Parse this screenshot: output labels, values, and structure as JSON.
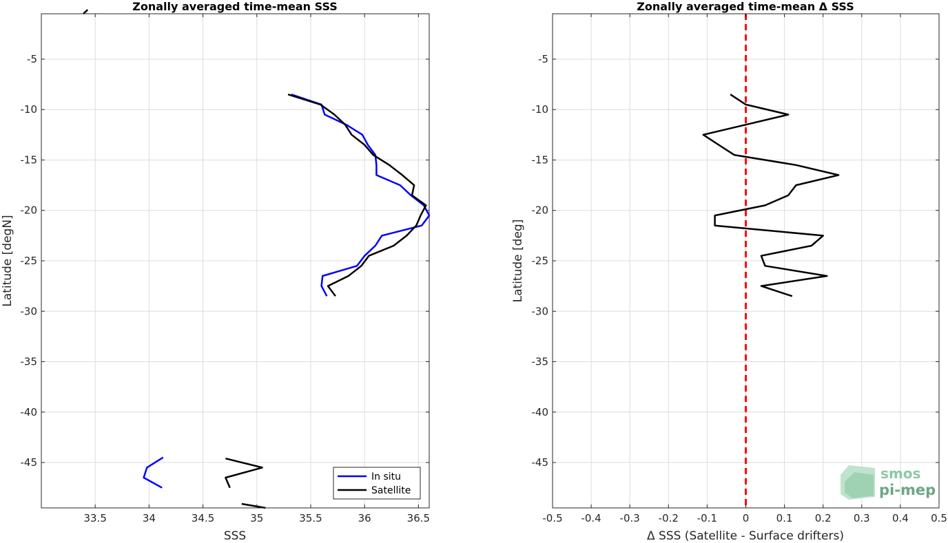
{
  "chart_data": [
    {
      "type": "line",
      "title": "Zonally averaged time-mean SSS",
      "xlabel": "SSS",
      "ylabel": "Latitude [degN]",
      "xlim": [
        33.0,
        36.6
      ],
      "ylim": [
        -49.5,
        -0.5
      ],
      "xticks": [
        33.5,
        34,
        34.5,
        35,
        35.5,
        36,
        36.5
      ],
      "xtick_labels": [
        "33.5",
        "34",
        "34.5",
        "35",
        "35.5",
        "36",
        "36.5"
      ],
      "yticks": [
        -5,
        -10,
        -15,
        -20,
        -25,
        -30,
        -35,
        -40,
        -45
      ],
      "ytick_labels": [
        "-5",
        "-10",
        "-15",
        "-20",
        "-25",
        "-30",
        "-35",
        "-40",
        "-45"
      ],
      "grid": true,
      "legend_position": "bottom-right",
      "series": [
        {
          "name": "In situ",
          "color": "#0000ff",
          "segments": [
            [
              [
                35.32,
                -8.5
              ],
              [
                35.6,
                -9.5
              ],
              [
                35.63,
                -10.5
              ],
              [
                35.83,
                -11.5
              ],
              [
                35.98,
                -12.5
              ],
              [
                36.03,
                -13.5
              ],
              [
                36.1,
                -14.5
              ],
              [
                36.11,
                -15.5
              ],
              [
                36.11,
                -16.5
              ],
              [
                36.33,
                -17.5
              ],
              [
                36.43,
                -18.5
              ],
              [
                36.55,
                -19.5
              ],
              [
                36.6,
                -20.5
              ],
              [
                36.53,
                -21.5
              ],
              [
                36.16,
                -22.5
              ],
              [
                36.1,
                -23.5
              ],
              [
                36.0,
                -24.5
              ],
              [
                35.93,
                -25.5
              ],
              [
                35.61,
                -26.5
              ],
              [
                35.6,
                -27.5
              ],
              [
                35.65,
                -28.5
              ]
            ],
            [
              [
                34.13,
                -44.5
              ],
              [
                33.98,
                -45.5
              ],
              [
                33.95,
                -46.5
              ],
              [
                34.12,
                -47.5
              ]
            ]
          ]
        },
        {
          "name": "Satellite",
          "color": "#000000",
          "segments": [
            [
              [
                33.43,
                -0.1
              ],
              [
                33.39,
                -0.5
              ]
            ],
            [
              [
                35.29,
                -8.5
              ],
              [
                35.59,
                -9.5
              ],
              [
                35.72,
                -10.5
              ],
              [
                35.82,
                -11.5
              ],
              [
                35.88,
                -12.5
              ],
              [
                36.0,
                -13.5
              ],
              [
                36.08,
                -14.5
              ],
              [
                36.23,
                -15.5
              ],
              [
                36.35,
                -16.5
              ],
              [
                36.46,
                -17.5
              ],
              [
                36.44,
                -18.5
              ],
              [
                36.57,
                -19.5
              ],
              [
                36.52,
                -20.5
              ],
              [
                36.48,
                -21.5
              ],
              [
                36.39,
                -22.5
              ],
              [
                36.27,
                -23.5
              ],
              [
                36.04,
                -24.5
              ],
              [
                35.97,
                -25.5
              ],
              [
                35.85,
                -26.5
              ],
              [
                35.66,
                -27.5
              ],
              [
                35.73,
                -28.5
              ]
            ],
            [
              [
                34.71,
                -44.6
              ],
              [
                35.05,
                -45.5
              ],
              [
                34.71,
                -46.5
              ],
              [
                34.75,
                -47.5
              ]
            ],
            [
              [
                34.86,
                -49.1
              ],
              [
                35.08,
                -49.5
              ]
            ]
          ]
        }
      ]
    },
    {
      "type": "line",
      "title": "Zonally averaged time-mean Δ SSS",
      "xlabel": "Δ SSS (Satellite - Surface drifters)",
      "ylabel": "Latitude [deg]",
      "xlim": [
        -0.5,
        0.5
      ],
      "ylim": [
        -49.5,
        -0.5
      ],
      "xticks": [
        -0.5,
        -0.4,
        -0.3,
        -0.2,
        -0.1,
        0,
        0.1,
        0.2,
        0.3,
        0.4,
        0.5
      ],
      "xtick_labels": [
        "-0.5",
        "-0.4",
        "-0.3",
        "-0.2",
        "-0.1",
        "0",
        "0.1",
        "0.2",
        "0.3",
        "0.4",
        "0.5"
      ],
      "yticks": [
        -5,
        -10,
        -15,
        -20,
        -25,
        -30,
        -35,
        -40,
        -45
      ],
      "ytick_labels": [
        "-5",
        "-10",
        "-15",
        "-20",
        "-25",
        "-30",
        "-35",
        "-40",
        "-45"
      ],
      "grid": true,
      "reference_line": {
        "x": 0,
        "color": "#ff0000",
        "style": "dashed"
      },
      "series": [
        {
          "color": "#000000",
          "segments": [
            [
              [
                -0.04,
                -8.5
              ],
              [
                0.0,
                -9.5
              ],
              [
                0.11,
                -10.5
              ],
              [
                0.0,
                -11.5
              ],
              [
                -0.11,
                -12.5
              ],
              [
                -0.07,
                -13.5
              ],
              [
                -0.03,
                -14.5
              ],
              [
                0.13,
                -15.5
              ],
              [
                0.24,
                -16.5
              ],
              [
                0.13,
                -17.5
              ],
              [
                0.11,
                -18.5
              ],
              [
                0.05,
                -19.5
              ],
              [
                -0.08,
                -20.5
              ],
              [
                -0.08,
                -21.5
              ],
              [
                0.2,
                -22.5
              ],
              [
                0.17,
                -23.5
              ],
              [
                0.04,
                -24.5
              ],
              [
                0.05,
                -25.5
              ],
              [
                0.21,
                -26.5
              ],
              [
                0.04,
                -27.5
              ],
              [
                0.12,
                -28.5
              ]
            ]
          ]
        }
      ]
    }
  ],
  "logo": {
    "line1": "smos",
    "line2": "pi-mep"
  }
}
